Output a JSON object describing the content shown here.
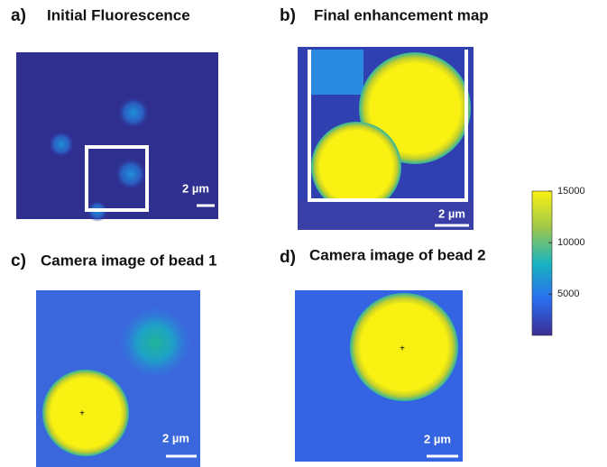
{
  "panels": [
    {
      "letter": "a)",
      "title": "Initial Fluorescence",
      "scale_bar": "2 µm"
    },
    {
      "letter": "b)",
      "title": "Final enhancement map",
      "scale_bar": "2 µm"
    },
    {
      "letter": "c)",
      "title": "Camera image of bead 1",
      "scale_bar": "2 µm"
    },
    {
      "letter": "d)",
      "title": "Camera image of bead 2",
      "scale_bar": "2 µm"
    }
  ],
  "colorbar": {
    "lim": [
      1000,
      15000
    ],
    "ticks": [
      5000,
      10000,
      15000
    ]
  }
}
